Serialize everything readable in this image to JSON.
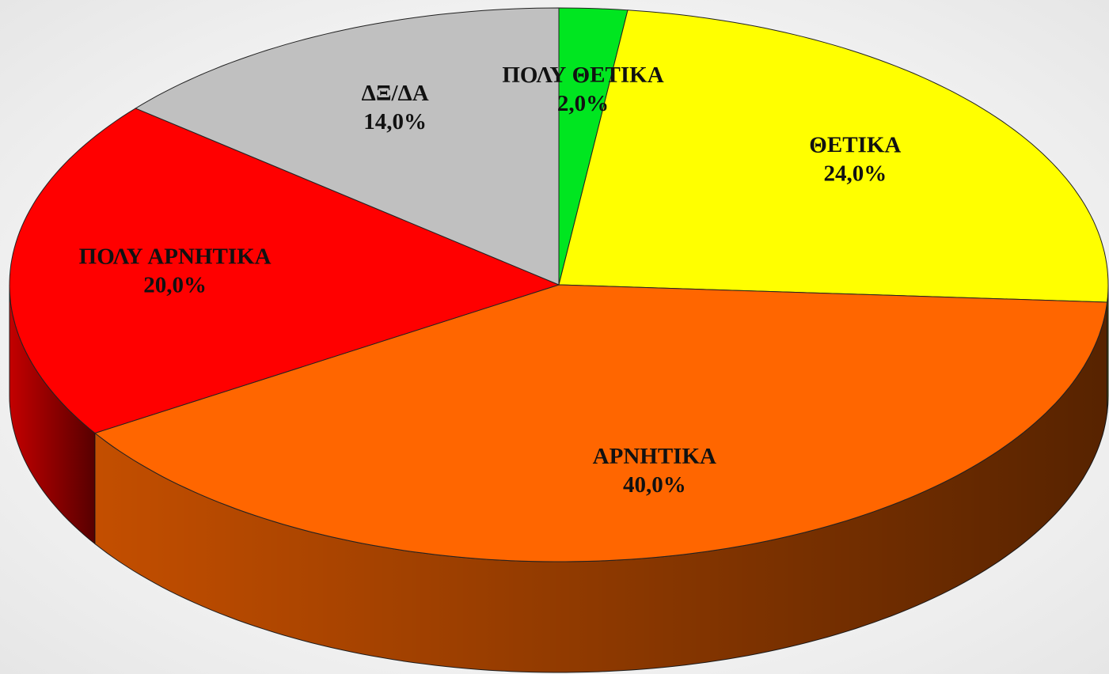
{
  "chart_data": {
    "type": "pie",
    "categories": [
      "ΠΟΛΥ ΘΕΤΙΚΑ",
      "ΘΕΤΙΚΑ",
      "ΑΡΝΗΤΙΚΑ",
      "ΠΟΛΥ ΑΡΝΗΤΙΚΑ",
      "ΔΞ/ΔΑ"
    ],
    "values": [
      2,
      24,
      40,
      20,
      14
    ],
    "value_labels": [
      "2,0%",
      "24,0%",
      "40,0%",
      "20,0%",
      "14,0%"
    ],
    "colors": [
      "#00e620",
      "#ffff00",
      "#ff6600",
      "#ff0000",
      "#c0c0c0"
    ]
  }
}
